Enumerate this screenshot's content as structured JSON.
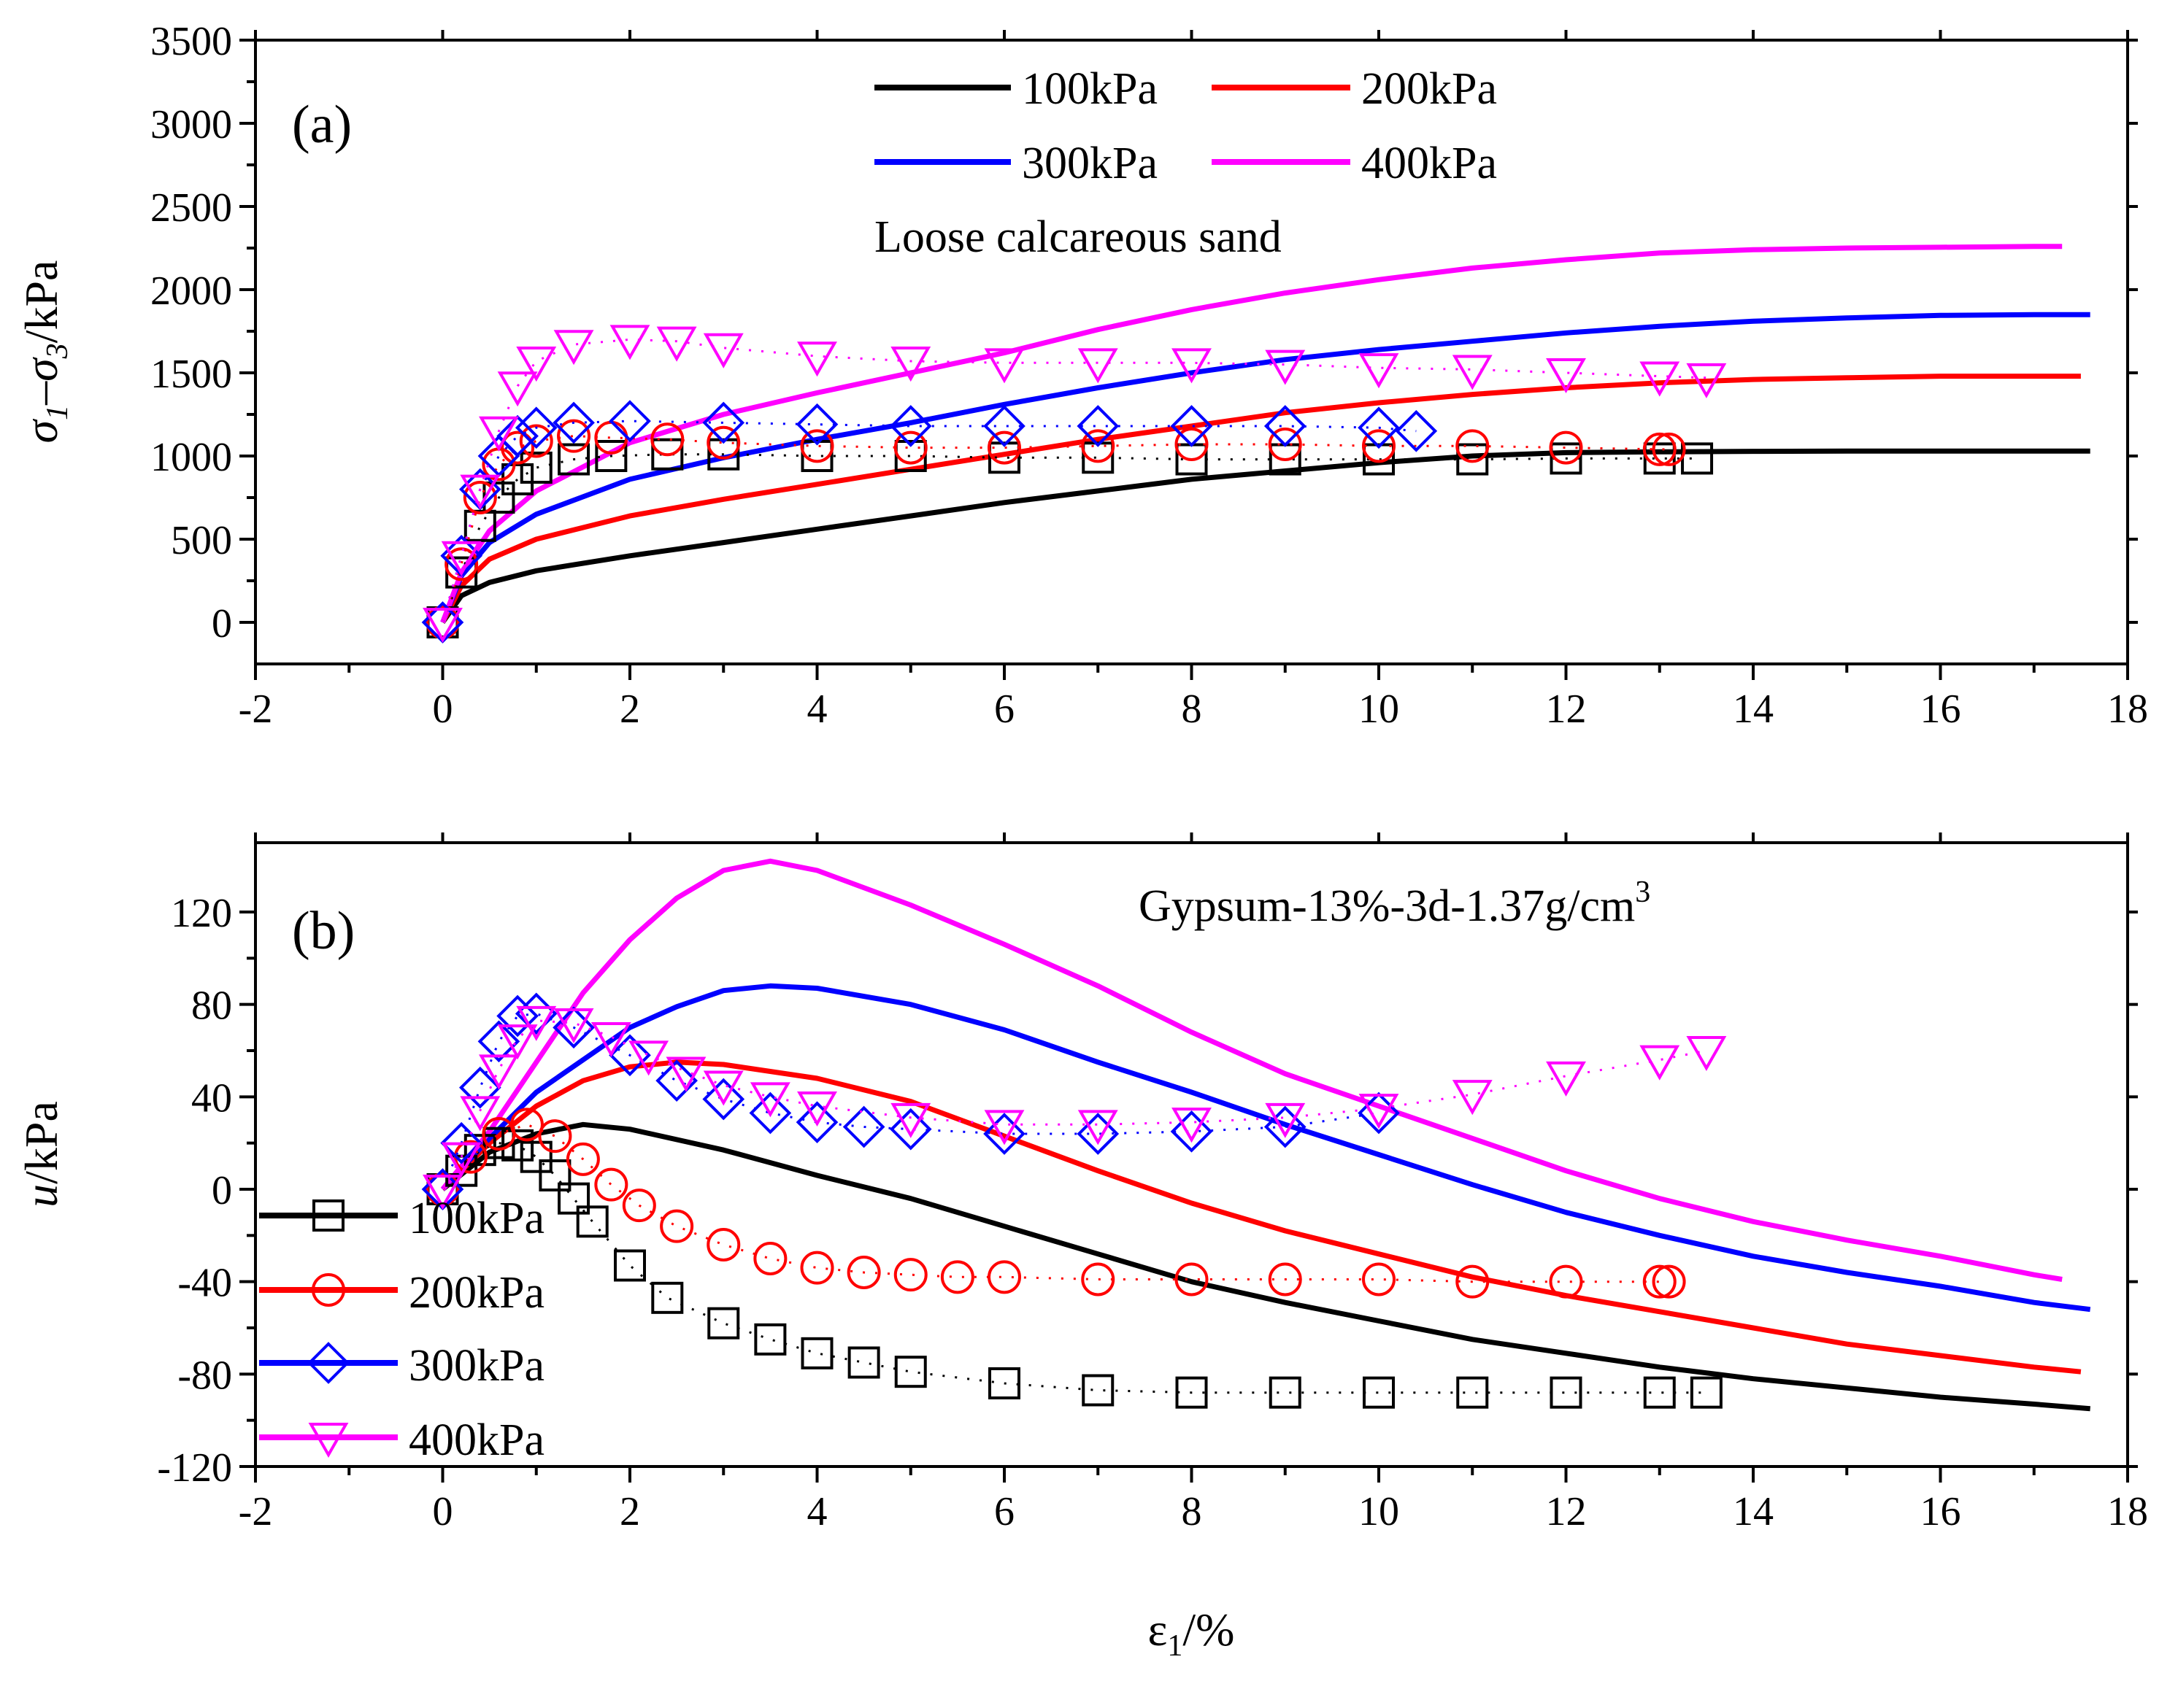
{
  "colors": {
    "100kPa": "#000000",
    "200kPa": "#ff0000",
    "300kPa": "#0000ff",
    "400kPa": "#ff00ff"
  },
  "chart_data": [
    {
      "type": "line",
      "panel_label": "(a)",
      "annotation": "Loose calcareous sand",
      "xlabel_base": "ε",
      "xlabel_sub": "1",
      "xlabel_unit": "/%",
      "ylabel_parts": {
        "s1": "σ",
        "sub1": "1",
        "dash": "–",
        "s3": "σ",
        "sub3": "3",
        "unit": "/kPa"
      },
      "xlim": [
        -2,
        18
      ],
      "ylim": [
        -250,
        3500
      ],
      "xticks": [
        "-2",
        "0",
        "2",
        "4",
        "6",
        "8",
        "10",
        "12",
        "14",
        "16",
        "18"
      ],
      "yticks": [
        "0",
        "500",
        "1000",
        "1500",
        "2000",
        "2500",
        "3000",
        "3500"
      ],
      "legend_position": "top-center",
      "legend": [
        "100kPa",
        "200kPa",
        "300kPa",
        "400kPa"
      ],
      "series": [
        {
          "name": "100kPa",
          "group": "line",
          "style": "solid",
          "x": [
            0,
            0.2,
            0.5,
            1,
            2,
            3,
            4,
            5,
            6,
            7,
            8,
            9,
            10,
            11,
            12,
            13,
            14,
            15,
            16,
            17,
            17.6
          ],
          "y": [
            0,
            160,
            240,
            310,
            400,
            480,
            560,
            640,
            720,
            790,
            860,
            910,
            960,
            1000,
            1020,
            1025,
            1028,
            1030,
            1030,
            1030,
            1030
          ]
        },
        {
          "name": "200kPa",
          "group": "line",
          "style": "solid",
          "x": [
            0,
            0.2,
            0.5,
            1,
            2,
            3,
            4,
            5,
            6,
            7,
            8,
            9,
            10,
            11,
            12,
            13,
            14,
            15,
            16,
            17,
            17.5
          ],
          "y": [
            0,
            220,
            380,
            500,
            640,
            740,
            830,
            920,
            1010,
            1100,
            1180,
            1260,
            1320,
            1370,
            1410,
            1440,
            1460,
            1470,
            1480,
            1480,
            1480
          ]
        },
        {
          "name": "300kPa",
          "group": "line",
          "style": "solid",
          "x": [
            0,
            0.2,
            0.5,
            1,
            2,
            3,
            4,
            5,
            6,
            7,
            8,
            9,
            10,
            11,
            12,
            13,
            14,
            15,
            16,
            17,
            17.6
          ],
          "y": [
            0,
            280,
            480,
            650,
            860,
            990,
            1100,
            1200,
            1310,
            1410,
            1500,
            1580,
            1640,
            1690,
            1740,
            1780,
            1810,
            1830,
            1845,
            1850,
            1850
          ]
        },
        {
          "name": "400kPa",
          "group": "line",
          "style": "solid",
          "x": [
            0,
            0.2,
            0.5,
            1,
            2,
            3,
            4,
            5,
            6,
            7,
            8,
            9,
            10,
            11,
            12,
            13,
            14,
            15,
            16,
            17,
            17.3
          ],
          "y": [
            0,
            300,
            550,
            790,
            1080,
            1250,
            1380,
            1500,
            1620,
            1760,
            1880,
            1980,
            2060,
            2130,
            2180,
            2220,
            2240,
            2250,
            2255,
            2260,
            2260
          ]
        },
        {
          "name": "100kPa",
          "group": "marker",
          "marker": "square",
          "x": [
            0,
            0.2,
            0.4,
            0.6,
            0.8,
            1.0,
            1.4,
            1.8,
            2.4,
            3,
            4,
            5,
            6,
            7,
            8,
            9,
            10,
            11,
            12,
            13,
            13.4
          ],
          "y": [
            0,
            300,
            580,
            750,
            860,
            930,
            980,
            1000,
            1010,
            1010,
            1000,
            1000,
            990,
            990,
            980,
            980,
            980,
            980,
            985,
            985,
            985
          ]
        },
        {
          "name": "200kPa",
          "group": "marker",
          "marker": "circle",
          "x": [
            0,
            0.2,
            0.4,
            0.6,
            0.8,
            1.0,
            1.4,
            1.8,
            2.4,
            3,
            4,
            5,
            6,
            7,
            8,
            9,
            10,
            11,
            12,
            13,
            13.1
          ],
          "y": [
            0,
            350,
            750,
            950,
            1050,
            1090,
            1120,
            1110,
            1100,
            1080,
            1060,
            1050,
            1050,
            1060,
            1070,
            1070,
            1060,
            1060,
            1050,
            1040,
            1040
          ]
        },
        {
          "name": "300kPa",
          "group": "marker",
          "marker": "diamond",
          "x": [
            0,
            0.2,
            0.4,
            0.6,
            0.8,
            1.0,
            1.4,
            2,
            3,
            4,
            5,
            6,
            7,
            8,
            9,
            10,
            10.4
          ],
          "y": [
            0,
            400,
            800,
            1000,
            1120,
            1170,
            1200,
            1210,
            1200,
            1190,
            1180,
            1180,
            1180,
            1180,
            1180,
            1170,
            1150
          ]
        },
        {
          "name": "400kPa",
          "group": "marker",
          "marker": "triangle-down",
          "x": [
            0,
            0.2,
            0.4,
            0.6,
            0.8,
            1.0,
            1.4,
            2,
            2.5,
            3,
            4,
            5,
            6,
            7,
            8,
            9,
            10,
            11,
            12,
            13,
            13.5
          ],
          "y": [
            0,
            400,
            800,
            1150,
            1420,
            1570,
            1670,
            1700,
            1690,
            1650,
            1600,
            1570,
            1560,
            1560,
            1560,
            1550,
            1530,
            1520,
            1500,
            1480,
            1470
          ]
        }
      ]
    },
    {
      "type": "line",
      "panel_label": "(b)",
      "annotation": "Gypsum-13%-3d-1.37g/cm",
      "annotation_sup": "3",
      "xlabel_base": "ε",
      "xlabel_sub": "1",
      "xlabel_unit": "/%",
      "ylabel_parts": {
        "var": "u",
        "unit": "/kPa"
      },
      "xlim": [
        -2,
        18
      ],
      "ylim": [
        -120,
        150
      ],
      "xticks": [
        "-2",
        "0",
        "2",
        "4",
        "6",
        "8",
        "10",
        "12",
        "14",
        "16",
        "18"
      ],
      "yticks": [
        "-120",
        "-80",
        "-40",
        "0",
        "40",
        "80",
        "120"
      ],
      "legend_position": "bottom-left",
      "legend": [
        "100kPa",
        "200kPa",
        "300kPa",
        "400kPa"
      ],
      "series": [
        {
          "name": "100kPa",
          "group": "line",
          "style": "solid",
          "x": [
            0,
            0.5,
            1,
            1.5,
            2,
            3,
            4,
            5,
            6,
            7,
            8,
            9,
            10,
            11,
            12,
            13,
            14,
            15,
            16,
            17,
            17.6
          ],
          "y": [
            0,
            16,
            24,
            28,
            26,
            17,
            6,
            -4,
            -16,
            -28,
            -40,
            -49,
            -57,
            -65,
            -71,
            -77,
            -82,
            -86,
            -90,
            -93,
            -95
          ]
        },
        {
          "name": "200kPa",
          "group": "line",
          "style": "solid",
          "x": [
            0,
            0.5,
            1,
            1.5,
            2,
            2.5,
            3,
            4,
            5,
            6,
            7,
            8,
            9,
            10,
            11,
            12,
            13,
            14,
            15,
            16,
            17,
            17.5
          ],
          "y": [
            0,
            20,
            36,
            47,
            53,
            55,
            54,
            48,
            38,
            23,
            8,
            -6,
            -18,
            -28,
            -38,
            -46,
            -53,
            -60,
            -67,
            -72,
            -77,
            -79
          ]
        },
        {
          "name": "300kPa",
          "group": "line",
          "style": "solid",
          "x": [
            0,
            0.5,
            1,
            2,
            2.5,
            3,
            3.5,
            4,
            5,
            6,
            7,
            8,
            9,
            10,
            11,
            12,
            13,
            14,
            15,
            16,
            17,
            17.6
          ],
          "y": [
            0,
            22,
            42,
            70,
            79,
            86,
            88,
            87,
            80,
            69,
            55,
            42,
            28,
            15,
            2,
            -10,
            -20,
            -29,
            -36,
            -42,
            -49,
            -52
          ]
        },
        {
          "name": "400kPa",
          "group": "line",
          "style": "solid",
          "x": [
            0,
            0.5,
            1,
            1.5,
            2,
            2.5,
            3,
            3.5,
            4,
            5,
            6,
            7,
            8,
            9,
            10,
            11,
            12,
            13,
            14,
            15,
            16,
            17,
            17.3
          ],
          "y": [
            0,
            25,
            55,
            85,
            108,
            126,
            138,
            142,
            138,
            123,
            106,
            88,
            68,
            50,
            36,
            22,
            8,
            -4,
            -14,
            -22,
            -29,
            -37,
            -39
          ]
        },
        {
          "name": "100kPa",
          "group": "marker",
          "marker": "square",
          "x": [
            0,
            0.2,
            0.4,
            0.6,
            0.8,
            1.0,
            1.2,
            1.4,
            1.6,
            2,
            2.4,
            3,
            3.5,
            4,
            4.5,
            5,
            6,
            7,
            8,
            9,
            10,
            11,
            12,
            13,
            13.5
          ],
          "y": [
            0,
            8,
            17,
            20,
            19,
            14,
            6,
            -4,
            -14,
            -33,
            -47,
            -58,
            -65,
            -71,
            -75,
            -79,
            -84,
            -87,
            -88,
            -88,
            -88,
            -88,
            -88,
            -88,
            -88
          ]
        },
        {
          "name": "200kPa",
          "group": "marker",
          "marker": "circle",
          "x": [
            0,
            0.3,
            0.6,
            0.9,
            1.2,
            1.5,
            1.8,
            2.1,
            2.5,
            3,
            3.5,
            4,
            4.5,
            5,
            5.5,
            6,
            7,
            8,
            9,
            10,
            11,
            12,
            13,
            13.1
          ],
          "y": [
            0,
            14,
            24,
            28,
            23,
            13,
            2,
            -7,
            -16,
            -24,
            -30,
            -34,
            -36,
            -37,
            -38,
            -38,
            -39,
            -39,
            -39,
            -39,
            -40,
            -40,
            -40,
            -40
          ]
        },
        {
          "name": "300kPa",
          "group": "marker",
          "marker": "diamond",
          "x": [
            0,
            0.2,
            0.4,
            0.6,
            0.8,
            1.0,
            1.4,
            2,
            2.5,
            3,
            3.5,
            4,
            4.5,
            5,
            6,
            7,
            8,
            9,
            10
          ],
          "y": [
            0,
            20,
            44,
            64,
            75,
            76,
            70,
            58,
            47,
            39,
            33,
            29,
            27,
            26,
            24,
            24,
            25,
            27,
            33
          ]
        },
        {
          "name": "400kPa",
          "group": "marker",
          "marker": "triangle-down",
          "x": [
            0,
            0.2,
            0.4,
            0.6,
            0.8,
            1.0,
            1.4,
            1.8,
            2.2,
            2.6,
            3,
            3.5,
            4,
            5,
            6,
            7,
            8,
            9,
            10,
            11,
            12,
            13,
            13.5
          ],
          "y": [
            0,
            14,
            34,
            52,
            65,
            73,
            72,
            66,
            58,
            51,
            45,
            40,
            36,
            31,
            28,
            28,
            29,
            31,
            35,
            41,
            49,
            56,
            60
          ]
        }
      ]
    }
  ]
}
